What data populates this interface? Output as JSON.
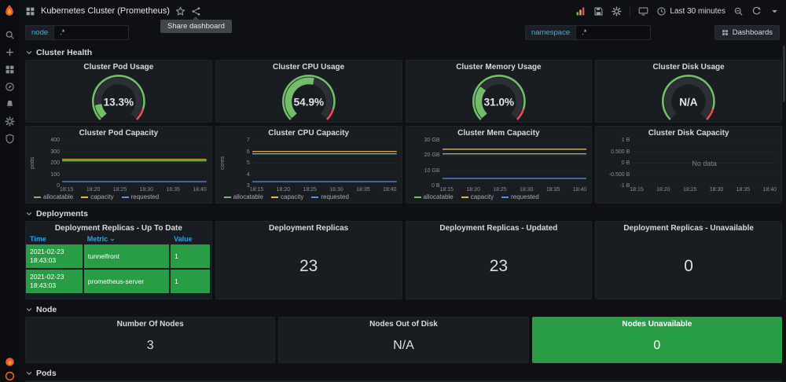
{
  "nav": {
    "title": "Kubernetes Cluster (Prometheus)",
    "share_tooltip": "Share dashboard",
    "time_range": "Last 30 minutes",
    "dashboards_button": "Dashboards"
  },
  "variables": {
    "node": {
      "label": "node",
      "value": ".*"
    },
    "namespace": {
      "label": "namespace",
      "value": ".*"
    }
  },
  "rows": {
    "cluster_health": {
      "title": "Cluster Health"
    },
    "deployments": {
      "title": "Deployments"
    },
    "node": {
      "title": "Node"
    },
    "pods": {
      "title": "Pods"
    }
  },
  "gauges": [
    {
      "title": "Cluster Pod Usage",
      "value": "13.3%",
      "percent": 13.3
    },
    {
      "title": "Cluster CPU Usage",
      "value": "54.9%",
      "percent": 54.9
    },
    {
      "title": "Cluster Memory Usage",
      "value": "31.0%",
      "percent": 31.0
    },
    {
      "title": "Cluster Disk Usage",
      "value": "N/A",
      "percent": null
    }
  ],
  "graphs": [
    {
      "title": "Cluster Pod Capacity",
      "ylabel": "pods",
      "yticks": [
        "400",
        "300",
        "200",
        "100",
        "0"
      ],
      "xticks": [
        "18:15",
        "18:20",
        "18:25",
        "18:30",
        "18:35",
        "18:40"
      ],
      "no_data": false,
      "no_data_text": "",
      "series": [
        {
          "name": "allocatable",
          "color": "#73BF69",
          "approx_value": 220,
          "y_frac": 0.55
        },
        {
          "name": "capacity",
          "color": "#EAB839",
          "approx_value": 232,
          "y_frac": 0.58
        },
        {
          "name": "requested",
          "color": "#5794F2",
          "approx_value": 40,
          "y_frac": 0.1
        }
      ]
    },
    {
      "title": "Cluster CPU Capacity",
      "ylabel": "cores",
      "yticks": [
        "7",
        "6",
        "5",
        "4",
        "3"
      ],
      "xticks": [
        "18:15",
        "18:20",
        "18:25",
        "18:30",
        "18:35",
        "18:40"
      ],
      "no_data": false,
      "no_data_text": "",
      "series": [
        {
          "name": "allocatable",
          "color": "#73BF69",
          "approx_value": 5.8,
          "y_frac": 0.7
        },
        {
          "name": "capacity",
          "color": "#EAB839",
          "approx_value": 6.0,
          "y_frac": 0.75
        },
        {
          "name": "requested",
          "color": "#5794F2",
          "approx_value": 3.4,
          "y_frac": 0.1
        }
      ]
    },
    {
      "title": "Cluster Mem Capacity",
      "ylabel": "",
      "yticks": [
        "30 GB",
        "20 GB",
        "10 GB",
        "0 B"
      ],
      "xticks": [
        "18:15",
        "18:20",
        "18:25",
        "18:30",
        "18:35",
        "18:40"
      ],
      "no_data": false,
      "no_data_text": "",
      "series": [
        {
          "name": "allocatable",
          "color": "#73BF69",
          "approx_value": "21 GB",
          "y_frac": 0.7
        },
        {
          "name": "capacity",
          "color": "#EAB839",
          "approx_value": "24 GB",
          "y_frac": 0.8
        },
        {
          "name": "requested",
          "color": "#5794F2",
          "approx_value": "5 GB",
          "y_frac": 0.17
        }
      ]
    },
    {
      "title": "Cluster Disk Capacity",
      "ylabel": "",
      "yticks": [
        "1 B",
        "0.500 B",
        "0 B",
        "-0.500 B",
        "-1 B"
      ],
      "xticks": [
        "18:15",
        "18:20",
        "18:25",
        "18:30",
        "18:35",
        "18:40"
      ],
      "no_data": true,
      "no_data_text": "No data",
      "series": []
    }
  ],
  "table_panel": {
    "title": "Deployment Replicas - Up To Date",
    "columns": [
      "Time",
      "Metric",
      "Value"
    ],
    "rows": [
      [
        "2021-02-23 18:43:03",
        "tunnelfront",
        "1"
      ],
      [
        "2021-02-23 18:43:03",
        "prometheus-server",
        "1"
      ]
    ]
  },
  "stat_panels": [
    {
      "title": "Deployment Replicas",
      "value": "23"
    },
    {
      "title": "Deployment Replicas - Updated",
      "value": "23"
    },
    {
      "title": "Deployment Replicas - Unavailable",
      "value": "0"
    }
  ],
  "node_panels": [
    {
      "title": "Number Of Nodes",
      "value": "3",
      "highlight": false
    },
    {
      "title": "Nodes Out of Disk",
      "value": "N/A",
      "highlight": false
    },
    {
      "title": "Nodes Unavailable",
      "value": "0",
      "highlight": true
    }
  ],
  "icons": {
    "sidebar": [
      "search",
      "plus",
      "dashboards",
      "explore",
      "alerting",
      "configuration",
      "server-admin"
    ],
    "nav_right": [
      "add-panel",
      "save",
      "settings",
      "tv-mode",
      "clock",
      "zoom-out",
      "refresh",
      "caret-down"
    ]
  },
  "colors": {
    "accent_orange": "#F05A28",
    "green": "#299C46",
    "series_green": "#73BF69",
    "series_yellow": "#EAB839",
    "series_blue": "#5794F2",
    "red": "#F2495C",
    "header_blue": "#33A2E5",
    "gauge_bg": "#2c2f35"
  }
}
